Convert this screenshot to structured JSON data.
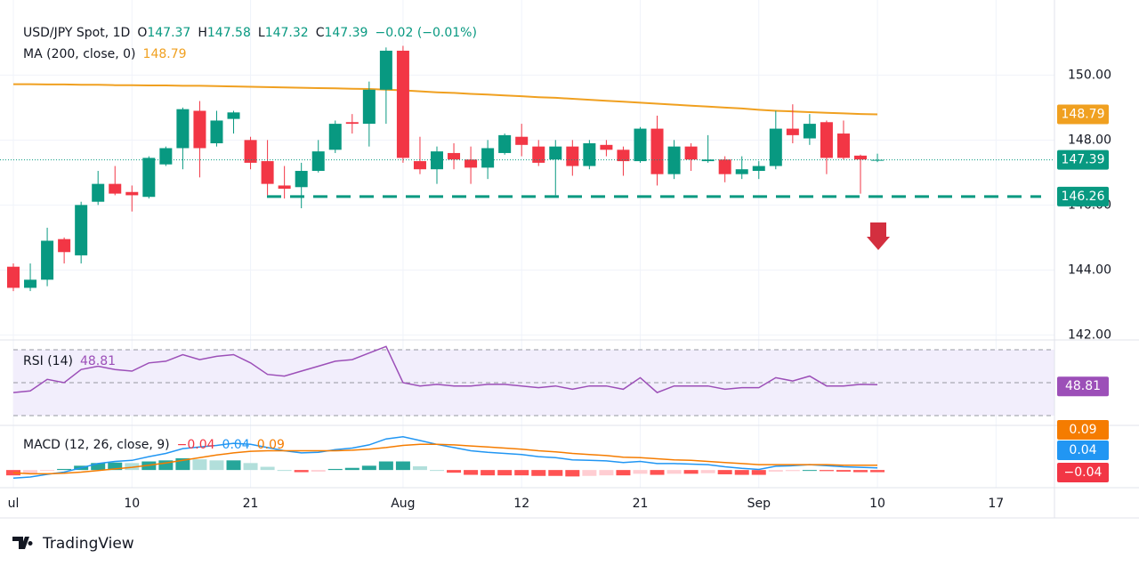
{
  "chart_data": {
    "type": "candlestick",
    "header": {
      "symbol": "USD/JPY Spot, 1D",
      "o": "O",
      "h": "H",
      "l": "L",
      "c": "C",
      "change": "−0.02 (−0.01%)"
    },
    "up_color": "#089981",
    "down_color": "#f23645",
    "categories": [
      "ul",
      null,
      null,
      null,
      null,
      null,
      null,
      "10",
      null,
      null,
      null,
      null,
      null,
      null,
      "21",
      null,
      null,
      null,
      null,
      null,
      null,
      null,
      null,
      "Aug",
      null,
      null,
      null,
      null,
      null,
      null,
      "12",
      null,
      null,
      null,
      null,
      null,
      null,
      "21",
      null,
      null,
      null,
      null,
      null,
      null,
      "Sep",
      null,
      null,
      null,
      null,
      null,
      null,
      "10",
      null,
      null,
      null,
      null,
      null,
      null,
      "17"
    ],
    "open": [
      144.1,
      143.45,
      143.7,
      144.95,
      144.45,
      146.1,
      146.65,
      146.4,
      146.25,
      147.25,
      147.75,
      148.9,
      147.9,
      148.65,
      148.0,
      147.35,
      146.6,
      146.55,
      147.05,
      147.7,
      148.55,
      148.5,
      149.55,
      150.75,
      147.35,
      147.1,
      147.6,
      147.4,
      147.15,
      147.6,
      148.1,
      147.8,
      147.4,
      147.8,
      147.2,
      147.85,
      147.7,
      147.35,
      148.35,
      146.95,
      147.8,
      147.35,
      147.4,
      146.95,
      147.05,
      147.2,
      148.35,
      148.05,
      148.55,
      148.2,
      147.52,
      147.37,
      null,
      null,
      null,
      null,
      null,
      null,
      null
    ],
    "high": [
      144.2,
      144.2,
      145.3,
      145.0,
      146.1,
      147.05,
      147.2,
      146.6,
      147.5,
      147.8,
      149.0,
      149.2,
      148.9,
      148.9,
      148.1,
      148.0,
      147.2,
      147.3,
      148.0,
      148.6,
      148.8,
      149.8,
      150.85,
      150.9,
      148.1,
      147.8,
      147.9,
      147.8,
      148.0,
      148.2,
      148.5,
      148.0,
      148.0,
      148.0,
      148.0,
      148.0,
      147.8,
      148.4,
      148.75,
      148.0,
      147.9,
      148.15,
      147.5,
      147.5,
      147.35,
      148.9,
      149.1,
      148.8,
      148.6,
      148.6,
      147.55,
      147.58,
      null,
      null,
      null,
      null,
      null,
      null,
      null
    ],
    "low": [
      143.35,
      143.35,
      143.5,
      144.2,
      144.2,
      146.0,
      146.3,
      145.8,
      146.2,
      147.2,
      147.1,
      146.85,
      147.8,
      148.2,
      147.1,
      146.3,
      146.2,
      145.9,
      147.0,
      147.6,
      148.2,
      147.8,
      148.5,
      147.3,
      146.95,
      146.65,
      147.1,
      146.65,
      146.8,
      147.55,
      147.5,
      147.2,
      146.3,
      146.9,
      147.1,
      147.5,
      146.9,
      147.3,
      146.6,
      146.8,
      147.05,
      147.3,
      146.7,
      146.8,
      146.8,
      147.1,
      147.9,
      147.85,
      146.95,
      147.4,
      146.35,
      147.32,
      null,
      null,
      null,
      null,
      null,
      null,
      null
    ],
    "close": [
      143.45,
      143.7,
      144.9,
      144.55,
      146.0,
      146.65,
      146.35,
      146.3,
      147.45,
      147.75,
      148.95,
      147.75,
      148.6,
      148.85,
      147.3,
      146.65,
      146.5,
      147.05,
      147.65,
      148.5,
      148.5,
      149.55,
      150.75,
      147.45,
      147.1,
      147.65,
      147.4,
      147.15,
      147.75,
      148.15,
      147.85,
      147.3,
      147.8,
      147.2,
      147.9,
      147.7,
      147.35,
      148.35,
      146.95,
      147.8,
      147.4,
      147.4,
      146.95,
      147.1,
      147.2,
      148.35,
      148.15,
      148.5,
      147.45,
      147.45,
      147.4,
      147.39,
      null,
      null,
      null,
      null,
      null,
      null,
      null
    ],
    "ylim": [
      141.9,
      151.9
    ],
    "yticks": [
      {
        "value": 150,
        "label": "150.00"
      },
      {
        "value": 148,
        "label": "148.00"
      },
      {
        "value": 146,
        "label": "146.00"
      },
      {
        "value": 144,
        "label": "144.00"
      },
      {
        "value": 142,
        "label": "142.00"
      }
    ],
    "grid": true,
    "ma": {
      "label": "MA (200, close, 0)",
      "color": "#f0a020",
      "values": [
        149.72,
        149.72,
        149.71,
        149.71,
        149.7,
        149.7,
        149.69,
        149.69,
        149.68,
        149.68,
        149.67,
        149.67,
        149.66,
        149.65,
        149.64,
        149.63,
        149.62,
        149.61,
        149.6,
        149.59,
        149.58,
        149.57,
        149.55,
        149.53,
        149.5,
        149.47,
        149.45,
        149.42,
        149.4,
        149.37,
        149.35,
        149.32,
        149.3,
        149.27,
        149.24,
        149.21,
        149.18,
        149.15,
        149.12,
        149.09,
        149.06,
        149.03,
        149.0,
        148.97,
        148.93,
        148.9,
        148.88,
        148.86,
        148.84,
        148.82,
        148.8,
        148.79,
        null,
        null,
        null,
        null,
        null,
        null,
        null
      ]
    },
    "support": {
      "value": 146.26,
      "color": "#089981"
    },
    "rsi": {
      "label": "RSI (14)",
      "color": "#9c4fb8",
      "ylim": [
        25.7,
        74.3
      ],
      "levels": [
        70,
        50,
        30
      ],
      "values": [
        44,
        45,
        52,
        50,
        58,
        60,
        58,
        57,
        62,
        63,
        67,
        64,
        66,
        67,
        62,
        55,
        54,
        57,
        60,
        63,
        64,
        68,
        72,
        50,
        48,
        49,
        48,
        48,
        49,
        49,
        48,
        47,
        48,
        46,
        48,
        48,
        46,
        53,
        44,
        48,
        48,
        48,
        46,
        47,
        47,
        53,
        51,
        54,
        48,
        48,
        49,
        48.81,
        null,
        null,
        null,
        null,
        null,
        null,
        null
      ]
    },
    "macd": {
      "label": "MACD (12, 26, close, 9)",
      "hist_label": "−0.04",
      "ylim": [
        -0.33,
        0.8
      ],
      "macd_color": "#2196f3",
      "signal_color": "#f57c00",
      "macd": [
        -0.15,
        -0.13,
        -0.08,
        -0.04,
        0.04,
        0.12,
        0.16,
        0.18,
        0.25,
        0.31,
        0.4,
        0.43,
        0.46,
        0.5,
        0.48,
        0.42,
        0.36,
        0.32,
        0.33,
        0.38,
        0.41,
        0.47,
        0.58,
        0.62,
        0.55,
        0.48,
        0.42,
        0.36,
        0.33,
        0.31,
        0.29,
        0.25,
        0.23,
        0.19,
        0.18,
        0.17,
        0.14,
        0.16,
        0.12,
        0.12,
        0.11,
        0.1,
        0.06,
        0.03,
        0.01,
        0.07,
        0.08,
        0.1,
        0.08,
        0.06,
        0.05,
        0.04,
        null,
        null,
        null,
        null,
        null,
        null,
        null
      ],
      "signal": [
        -0.05,
        -0.07,
        -0.07,
        -0.06,
        -0.04,
        -0.01,
        0.02,
        0.05,
        0.09,
        0.13,
        0.18,
        0.23,
        0.28,
        0.32,
        0.35,
        0.36,
        0.36,
        0.36,
        0.36,
        0.36,
        0.37,
        0.39,
        0.42,
        0.46,
        0.48,
        0.48,
        0.47,
        0.45,
        0.43,
        0.41,
        0.39,
        0.36,
        0.34,
        0.31,
        0.29,
        0.27,
        0.24,
        0.23,
        0.21,
        0.19,
        0.18,
        0.16,
        0.14,
        0.12,
        0.1,
        0.1,
        0.1,
        0.1,
        0.1,
        0.09,
        0.09,
        0.09,
        null,
        null,
        null,
        null,
        null,
        null,
        null
      ],
      "hist": [
        -0.1,
        -0.06,
        -0.01,
        0.02,
        0.08,
        0.13,
        0.14,
        0.13,
        0.16,
        0.18,
        0.22,
        0.2,
        0.18,
        0.18,
        0.13,
        0.06,
        0.0,
        -0.04,
        -0.03,
        0.02,
        0.04,
        0.08,
        0.16,
        0.16,
        0.07,
        0.0,
        -0.05,
        -0.09,
        -0.1,
        -0.1,
        -0.1,
        -0.11,
        -0.11,
        -0.12,
        -0.11,
        -0.1,
        -0.1,
        -0.07,
        -0.09,
        -0.07,
        -0.07,
        -0.06,
        -0.08,
        -0.09,
        -0.09,
        -0.03,
        -0.02,
        0.0,
        -0.02,
        -0.03,
        -0.04,
        -0.04,
        null,
        null,
        null,
        null,
        null,
        null,
        null
      ]
    },
    "brand": "TradingView"
  }
}
